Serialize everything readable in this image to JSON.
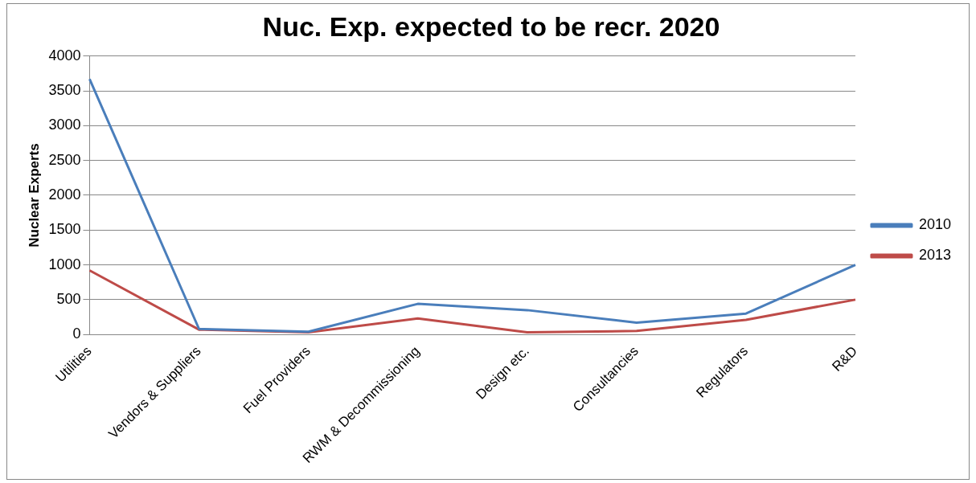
{
  "chart_data": {
    "type": "line",
    "title": "Nuc. Exp. expected to be recr. 2020",
    "ylabel": "Nuclear Experts",
    "categories": [
      "Utilities",
      "Vendors & Suppliers",
      "Fuel Providers",
      "RWM & Decommissioning",
      "Design etc.",
      "Consultancies",
      "Regulators",
      "R&D"
    ],
    "series": [
      {
        "name": "2010",
        "color": "#4a7ebb",
        "values": [
          3670,
          80,
          40,
          440,
          350,
          170,
          300,
          1000
        ]
      },
      {
        "name": "2013",
        "color": "#be4b48",
        "values": [
          920,
          70,
          30,
          230,
          30,
          50,
          210,
          500
        ]
      }
    ],
    "ylim": [
      0,
      4000
    ],
    "yticks": [
      0,
      500,
      1000,
      1500,
      2000,
      2500,
      3000,
      3500,
      4000
    ],
    "grid": "y",
    "legend": "right",
    "marker": "none",
    "line_style": "solid"
  }
}
